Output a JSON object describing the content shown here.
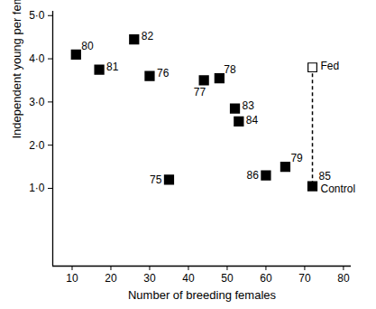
{
  "chart_data": {
    "type": "scatter",
    "xlabel": "Number of breeding females",
    "ylabel": "Independent young per female",
    "xlim": [
      5,
      82
    ],
    "xticks": [
      10,
      20,
      30,
      40,
      50,
      60,
      70,
      80
    ],
    "ylim": [
      -0.8,
      5.1
    ],
    "yticks": [
      {
        "value": 1.0,
        "label": "1·0"
      },
      {
        "value": 2.0,
        "label": "2·0"
      },
      {
        "value": 3.0,
        "label": "3·0"
      },
      {
        "value": 4.0,
        "label": "4·0"
      },
      {
        "value": 5.0,
        "label": "5·0"
      }
    ],
    "grid": false,
    "series": [
      {
        "name": "Control",
        "color": "#000000",
        "marker": "square",
        "x": [
          11,
          17,
          26,
          30,
          44,
          48,
          52,
          53,
          35,
          65,
          60,
          72
        ],
        "values": [
          4.1,
          3.75,
          4.45,
          3.6,
          3.5,
          3.55,
          2.85,
          2.55,
          1.2,
          1.5,
          1.3,
          1.05
        ],
        "labels": [
          "80",
          "81",
          "82",
          "76",
          "77",
          "78",
          "83",
          "84",
          "75",
          "79",
          "86",
          "85"
        ]
      },
      {
        "name": "Fed",
        "color": "#000000",
        "marker": "open square",
        "line_style": "dashed",
        "x": [
          72
        ],
        "values": [
          3.8
        ]
      }
    ]
  }
}
